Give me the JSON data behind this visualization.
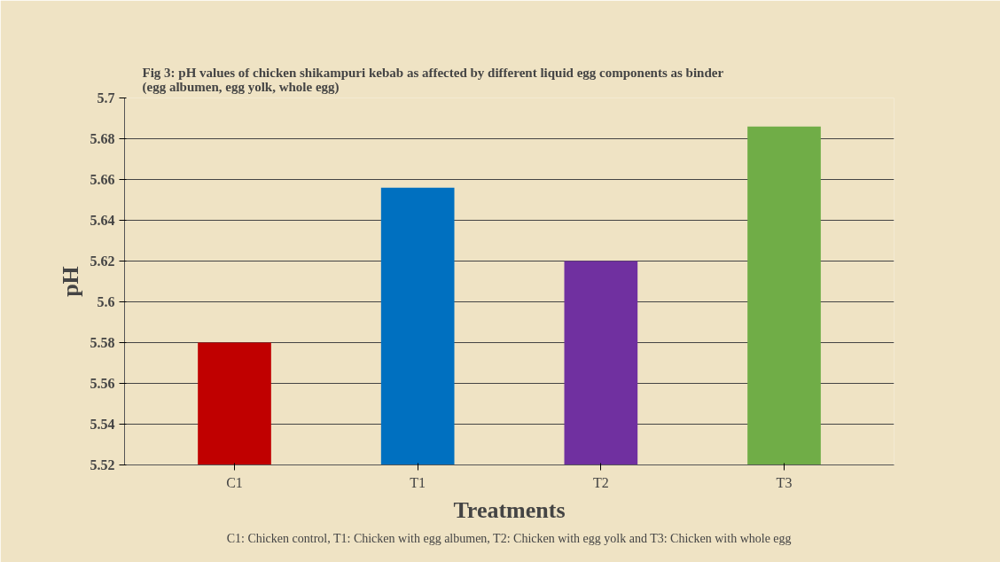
{
  "chart_data": {
    "type": "bar",
    "title": "Fig 3: pH values of chicken shikampuri kebab as affected by different liquid egg components as binder (egg albumen, egg yolk, whole egg)",
    "xlabel": "Treatments",
    "ylabel": "pH",
    "categories": [
      "C1",
      "T1",
      "T2",
      "T3"
    ],
    "values": [
      5.58,
      5.656,
      5.62,
      5.686
    ],
    "colors": [
      "#c00000",
      "#0070c0",
      "#7030a0",
      "#70ad47"
    ],
    "ylim": [
      5.52,
      5.7
    ],
    "yticks": [
      5.52,
      5.54,
      5.56,
      5.58,
      5.6,
      5.62,
      5.64,
      5.66,
      5.68,
      5.7
    ],
    "grid": "y",
    "annotations": [
      "C1: Chicken control, T1: Chicken with egg albumen, T2: Chicken with egg yolk and T3: Chicken with whole egg"
    ]
  }
}
